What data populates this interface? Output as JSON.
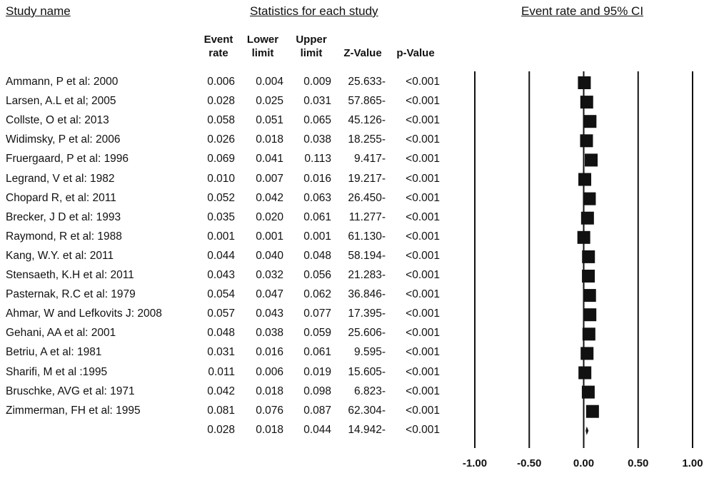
{
  "headers": {
    "study": "Study name",
    "stats": "Statistics for each study",
    "plot": "Event rate and 95% CI"
  },
  "columns": {
    "event_rate": [
      "Event",
      "rate"
    ],
    "lower": [
      "Lower",
      "limit"
    ],
    "upper": [
      "Upper",
      "limit"
    ],
    "z": "Z-Value",
    "p": "p-Value"
  },
  "chart_data": {
    "type": "forest",
    "title": "Event rate and 95% CI",
    "xlim": [
      -1.0,
      1.0
    ],
    "ticks": [
      "-1.00",
      "-0.50",
      "0.00",
      "0.50",
      "1.00"
    ],
    "tick_values": [
      -1.0,
      -0.5,
      0.0,
      0.5,
      1.0
    ],
    "studies": [
      {
        "name": "Ammann, P  et al: 2000",
        "event_rate": "0.006",
        "lower": "0.004",
        "upper": "0.009",
        "z": "25.633-",
        "p": "<0.001",
        "value": 0.006
      },
      {
        "name": "Larsen, A.L et al; 2005",
        "event_rate": "0.028",
        "lower": "0.025",
        "upper": "0.031",
        "z": "57.865-",
        "p": "<0.001",
        "value": 0.028
      },
      {
        "name": "Collste, O et al: 2013",
        "event_rate": "0.058",
        "lower": "0.051",
        "upper": "0.065",
        "z": "45.126-",
        "p": "<0.001",
        "value": 0.058
      },
      {
        "name": "Widimsky, P et al: 2006",
        "event_rate": "0.026",
        "lower": "0.018",
        "upper": "0.038",
        "z": "18.255-",
        "p": "<0.001",
        "value": 0.026
      },
      {
        "name": "Fruergaard, P et al: 1996",
        "event_rate": "0.069",
        "lower": "0.041",
        "upper": "0.113",
        "z": "9.417-",
        "p": "<0.001",
        "value": 0.069
      },
      {
        "name": "Legrand, V et al: 1982",
        "event_rate": "0.010",
        "lower": "0.007",
        "upper": "0.016",
        "z": "19.217-",
        "p": "<0.001",
        "value": 0.01
      },
      {
        "name": "Chopard R, et al: 2011",
        "event_rate": "0.052",
        "lower": "0.042",
        "upper": "0.063",
        "z": "26.450-",
        "p": "<0.001",
        "value": 0.052
      },
      {
        "name": "Brecker, J D et al: 1993",
        "event_rate": "0.035",
        "lower": "0.020",
        "upper": "0.061",
        "z": "11.277-",
        "p": "<0.001",
        "value": 0.035
      },
      {
        "name": "Raymond, R et al: 1988",
        "event_rate": "0.001",
        "lower": "0.001",
        "upper": "0.001",
        "z": "61.130-",
        "p": "<0.001",
        "value": 0.001
      },
      {
        "name": " Kang, W.Y. et al: 2011",
        "event_rate": "0.044",
        "lower": "0.040",
        "upper": "0.048",
        "z": "58.194-",
        "p": "<0.001",
        "value": 0.044
      },
      {
        "name": "Stensaeth, K.H et al: 2011",
        "event_rate": "0.043",
        "lower": "0.032",
        "upper": "0.056",
        "z": "21.283-",
        "p": "<0.001",
        "value": 0.043
      },
      {
        "name": "Pasternak, R.C et al: 1979",
        "event_rate": "0.054",
        "lower": "0.047",
        "upper": "0.062",
        "z": "36.846-",
        "p": "<0.001",
        "value": 0.054
      },
      {
        "name": "Ahmar, W and Lefkovits J: 2008",
        "event_rate": "0.057",
        "lower": "0.043",
        "upper": "0.077",
        "z": "17.395-",
        "p": "<0.001",
        "value": 0.057
      },
      {
        "name": "Gehani, AA et al: 2001",
        "event_rate": "0.048",
        "lower": "0.038",
        "upper": "0.059",
        "z": "25.606-",
        "p": "<0.001",
        "value": 0.048
      },
      {
        "name": "Betriu, A et al: 1981",
        "event_rate": "0.031",
        "lower": "0.016",
        "upper": "0.061",
        "z": "9.595-",
        "p": "<0.001",
        "value": 0.031
      },
      {
        "name": "Sharifi, M et al :1995",
        "event_rate": "0.011",
        "lower": "0.006",
        "upper": "0.019",
        "z": "15.605-",
        "p": "<0.001",
        "value": 0.011
      },
      {
        "name": "Bruschke, AVG et al: 1971",
        "event_rate": "0.042",
        "lower": "0.018",
        "upper": "0.098",
        "z": "6.823-",
        "p": "<0.001",
        "value": 0.042
      },
      {
        "name": "Zimmerman, FH et al: 1995",
        "event_rate": "0.081",
        "lower": "0.076",
        "upper": "0.087",
        "z": "62.304-",
        "p": "<0.001",
        "value": 0.081
      }
    ],
    "summary": {
      "name": "",
      "event_rate": "0.028",
      "lower": "0.018",
      "upper": "0.044",
      "z": "14.942-",
      "p": "<0.001",
      "value": 0.028
    }
  }
}
